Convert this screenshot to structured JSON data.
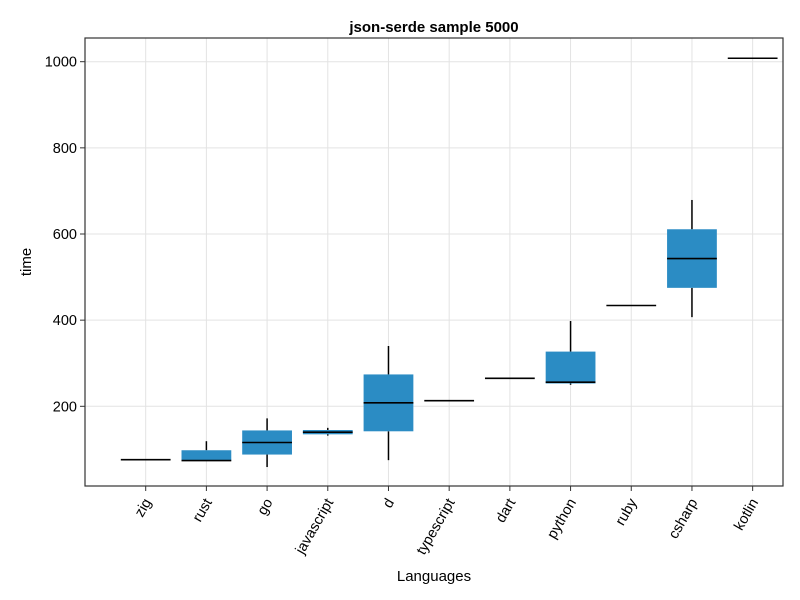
{
  "chart_data": {
    "type": "box",
    "title": "json-serde sample 5000",
    "xlabel": "Languages",
    "ylabel": "time",
    "categories": [
      "zig",
      "rust",
      "go",
      "javascript",
      "d",
      "typescript",
      "dart",
      "python",
      "ruby",
      "csharp",
      "kotlin"
    ],
    "boxes": [
      {
        "min": 76,
        "q1": 76,
        "median": 76,
        "q3": 76,
        "max": 76
      },
      {
        "min": 74,
        "q1": 74,
        "median": 74,
        "q3": 98,
        "max": 119
      },
      {
        "min": 59,
        "q1": 88,
        "median": 116,
        "q3": 144,
        "max": 172
      },
      {
        "min": 132,
        "q1": 135,
        "median": 140,
        "q3": 145,
        "max": 150
      },
      {
        "min": 75,
        "q1": 142,
        "median": 208,
        "q3": 274,
        "max": 340
      },
      {
        "min": 213,
        "q1": 213,
        "median": 213,
        "q3": 213,
        "max": 213
      },
      {
        "min": 265,
        "q1": 265,
        "median": 265,
        "q3": 265,
        "max": 265
      },
      {
        "min": 250,
        "q1": 253,
        "median": 256,
        "q3": 327,
        "max": 398
      },
      {
        "min": 434,
        "q1": 434,
        "median": 434,
        "q3": 434,
        "max": 434
      },
      {
        "min": 407,
        "q1": 475,
        "median": 543,
        "q3": 611,
        "max": 679
      },
      {
        "min": 1008,
        "q1": 1008,
        "median": 1008,
        "q3": 1008,
        "max": 1008
      }
    ],
    "yticks": [
      200,
      400,
      600,
      800,
      1000
    ],
    "ylim": [
      15,
      1055
    ],
    "grid": true,
    "box_color": "#2b8cc4",
    "line_color": "#000000",
    "frame_color": "#333333",
    "grid_color": "#e3e3e3"
  }
}
